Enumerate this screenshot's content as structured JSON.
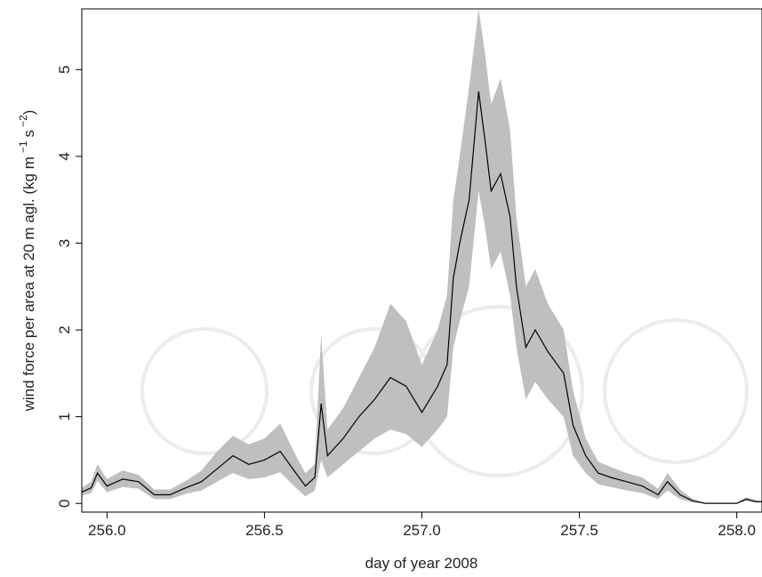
{
  "chart_data": {
    "type": "line",
    "title": "",
    "xlabel": "day of year 2008",
    "ylabel": "wind force per area at 20 m agl. (kg m",
    "ylabel_exp1": "−1",
    "ylabel_mid": "s",
    "ylabel_exp2": "−2",
    "ylabel_end": ")",
    "xlim": [
      255.92,
      258.08
    ],
    "ylim": [
      -0.1,
      5.7
    ],
    "x_ticks": [
      256.0,
      256.5,
      257.0,
      257.5,
      258.0
    ],
    "x_tick_labels": [
      "256.0",
      "256.5",
      "257.0",
      "257.5",
      "258.0"
    ],
    "y_ticks": [
      0,
      1,
      2,
      3,
      4,
      5
    ],
    "y_tick_labels": [
      "0",
      "1",
      "2",
      "3",
      "4",
      "5"
    ],
    "grid": false,
    "series": [
      {
        "role": "mean",
        "color": "#000000",
        "x": [
          255.92,
          255.95,
          255.97,
          256.0,
          256.05,
          256.1,
          256.15,
          256.2,
          256.25,
          256.3,
          256.35,
          256.4,
          256.45,
          256.5,
          256.55,
          256.6,
          256.63,
          256.66,
          256.68,
          256.7,
          256.75,
          256.8,
          256.85,
          256.9,
          256.95,
          257.0,
          257.05,
          257.08,
          257.1,
          257.12,
          257.15,
          257.18,
          257.2,
          257.22,
          257.25,
          257.28,
          257.3,
          257.33,
          257.36,
          257.4,
          257.45,
          257.48,
          257.52,
          257.56,
          257.6,
          257.65,
          257.7,
          257.75,
          257.78,
          257.82,
          257.86,
          257.9,
          257.95,
          258.0,
          258.03,
          258.06,
          258.08
        ],
        "y": [
          0.13,
          0.18,
          0.35,
          0.2,
          0.28,
          0.25,
          0.1,
          0.1,
          0.18,
          0.25,
          0.4,
          0.55,
          0.45,
          0.5,
          0.6,
          0.35,
          0.2,
          0.3,
          1.15,
          0.55,
          0.75,
          1.0,
          1.2,
          1.45,
          1.35,
          1.05,
          1.35,
          1.6,
          2.6,
          3.0,
          3.5,
          4.75,
          4.2,
          3.6,
          3.8,
          3.3,
          2.5,
          1.8,
          2.0,
          1.75,
          1.5,
          0.9,
          0.55,
          0.35,
          0.3,
          0.25,
          0.2,
          0.1,
          0.25,
          0.1,
          0.03,
          0.0,
          0.0,
          0.0,
          0.05,
          0.02,
          0.02
        ]
      },
      {
        "role": "upper-bound",
        "color": "#bfbfbf",
        "x": [
          255.92,
          255.95,
          255.97,
          256.0,
          256.05,
          256.1,
          256.15,
          256.2,
          256.25,
          256.3,
          256.35,
          256.4,
          256.45,
          256.5,
          256.55,
          256.6,
          256.63,
          256.66,
          256.68,
          256.7,
          256.75,
          256.8,
          256.85,
          256.9,
          256.95,
          257.0,
          257.05,
          257.08,
          257.1,
          257.12,
          257.15,
          257.18,
          257.2,
          257.22,
          257.25,
          257.28,
          257.3,
          257.33,
          257.36,
          257.4,
          257.45,
          257.48,
          257.52,
          257.56,
          257.6,
          257.65,
          257.7,
          257.75,
          257.78,
          257.82,
          257.86,
          257.9,
          257.95,
          258.0,
          258.03,
          258.06,
          258.08
        ],
        "y": [
          0.18,
          0.25,
          0.45,
          0.28,
          0.38,
          0.33,
          0.16,
          0.16,
          0.26,
          0.38,
          0.6,
          0.78,
          0.68,
          0.75,
          0.92,
          0.55,
          0.35,
          0.45,
          1.95,
          0.85,
          1.1,
          1.45,
          1.8,
          2.3,
          2.1,
          1.6,
          2.0,
          2.4,
          3.5,
          4.0,
          4.8,
          5.7,
          5.2,
          4.6,
          4.9,
          4.3,
          3.3,
          2.5,
          2.7,
          2.3,
          2.0,
          1.3,
          0.75,
          0.48,
          0.42,
          0.35,
          0.3,
          0.17,
          0.35,
          0.16,
          0.05,
          0.01,
          0.01,
          0.01,
          0.07,
          0.04,
          0.03
        ]
      },
      {
        "role": "lower-bound",
        "color": "#bfbfbf",
        "x": [
          255.92,
          255.95,
          255.97,
          256.0,
          256.05,
          256.1,
          256.15,
          256.2,
          256.25,
          256.3,
          256.35,
          256.4,
          256.45,
          256.5,
          256.55,
          256.6,
          256.63,
          256.66,
          256.68,
          256.7,
          256.75,
          256.8,
          256.85,
          256.9,
          256.95,
          257.0,
          257.05,
          257.08,
          257.1,
          257.12,
          257.15,
          257.18,
          257.2,
          257.22,
          257.25,
          257.28,
          257.3,
          257.33,
          257.36,
          257.4,
          257.45,
          257.48,
          257.52,
          257.56,
          257.6,
          257.65,
          257.7,
          257.75,
          257.78,
          257.82,
          257.86,
          257.9,
          257.95,
          258.0,
          258.03,
          258.06,
          258.08
        ],
        "y": [
          0.09,
          0.12,
          0.26,
          0.13,
          0.19,
          0.17,
          0.05,
          0.05,
          0.11,
          0.15,
          0.25,
          0.35,
          0.28,
          0.3,
          0.36,
          0.18,
          0.08,
          0.15,
          0.5,
          0.3,
          0.45,
          0.6,
          0.75,
          0.85,
          0.8,
          0.65,
          0.85,
          1.0,
          1.8,
          2.1,
          2.5,
          3.6,
          3.2,
          2.7,
          2.9,
          2.4,
          1.8,
          1.2,
          1.4,
          1.2,
          1.0,
          0.55,
          0.35,
          0.22,
          0.19,
          0.15,
          0.12,
          0.05,
          0.15,
          0.05,
          0.01,
          0.0,
          0.0,
          0.0,
          0.03,
          0.01,
          0.01
        ]
      }
    ]
  }
}
